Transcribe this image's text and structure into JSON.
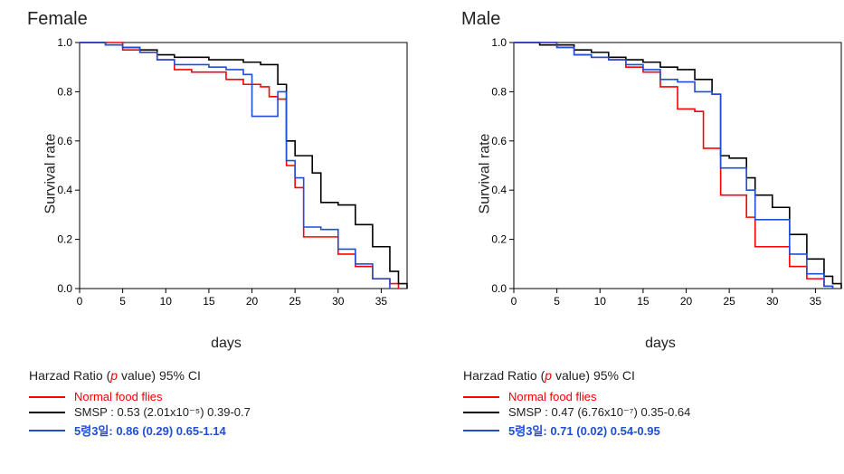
{
  "background_color": "#ffffff",
  "plot": {
    "xlim": [
      0,
      38
    ],
    "ylim": [
      0,
      1.0
    ],
    "xticks": [
      0,
      5,
      10,
      15,
      20,
      25,
      30,
      35
    ],
    "yticks": [
      0.0,
      0.2,
      0.4,
      0.6,
      0.8,
      1.0
    ],
    "xlabel": "days",
    "ylabel": "Survival rate",
    "axis_color": "#000000",
    "tick_fontsize": 12,
    "label_fontsize": 16,
    "line_width": 1.6,
    "box": true
  },
  "series_colors": {
    "normal": "#ff0000",
    "smsp": "#000000",
    "five": "#1f4fd6"
  },
  "female": {
    "title": "Female",
    "series": {
      "normal": [
        [
          0,
          1.0
        ],
        [
          3,
          1.0
        ],
        [
          5,
          0.97
        ],
        [
          7,
          0.96
        ],
        [
          9,
          0.93
        ],
        [
          11,
          0.89
        ],
        [
          13,
          0.88
        ],
        [
          15,
          0.88
        ],
        [
          17,
          0.85
        ],
        [
          19,
          0.83
        ],
        [
          21,
          0.82
        ],
        [
          22,
          0.78
        ],
        [
          23,
          0.77
        ],
        [
          24,
          0.5
        ],
        [
          25,
          0.41
        ],
        [
          26,
          0.21
        ],
        [
          28,
          0.21
        ],
        [
          30,
          0.14
        ],
        [
          32,
          0.09
        ],
        [
          34,
          0.04
        ],
        [
          36,
          0.02
        ],
        [
          37,
          0.0
        ]
      ],
      "smsp": [
        [
          0,
          1.0
        ],
        [
          3,
          0.99
        ],
        [
          5,
          0.98
        ],
        [
          7,
          0.97
        ],
        [
          9,
          0.95
        ],
        [
          11,
          0.94
        ],
        [
          13,
          0.94
        ],
        [
          15,
          0.93
        ],
        [
          17,
          0.93
        ],
        [
          19,
          0.92
        ],
        [
          21,
          0.91
        ],
        [
          23,
          0.83
        ],
        [
          24,
          0.6
        ],
        [
          25,
          0.54
        ],
        [
          27,
          0.47
        ],
        [
          28,
          0.35
        ],
        [
          30,
          0.34
        ],
        [
          32,
          0.26
        ],
        [
          34,
          0.17
        ],
        [
          36,
          0.07
        ],
        [
          37,
          0.02
        ],
        [
          38,
          0.0
        ]
      ],
      "five": [
        [
          0,
          1.0
        ],
        [
          3,
          0.99
        ],
        [
          5,
          0.98
        ],
        [
          7,
          0.96
        ],
        [
          9,
          0.93
        ],
        [
          11,
          0.91
        ],
        [
          13,
          0.91
        ],
        [
          15,
          0.9
        ],
        [
          17,
          0.89
        ],
        [
          19,
          0.87
        ],
        [
          20,
          0.7
        ],
        [
          21,
          0.7
        ],
        [
          23,
          0.8
        ],
        [
          24,
          0.52
        ],
        [
          25,
          0.45
        ],
        [
          26,
          0.25
        ],
        [
          28,
          0.24
        ],
        [
          30,
          0.16
        ],
        [
          32,
          0.1
        ],
        [
          34,
          0.04
        ],
        [
          36,
          0.0
        ]
      ]
    },
    "stats_title": "Harzad Ratio (p value) 95% CI",
    "legend": {
      "normal": "Normal food flies",
      "smsp": "SMSP : 0.53 (2.01x10⁻⁵) 0.39-0.7",
      "five": "5령3일: 0.86 (0.29) 0.65-1.14"
    }
  },
  "male": {
    "title": "Male",
    "series": {
      "normal": [
        [
          0,
          1.0
        ],
        [
          3,
          1.0
        ],
        [
          5,
          0.98
        ],
        [
          7,
          0.95
        ],
        [
          9,
          0.94
        ],
        [
          11,
          0.93
        ],
        [
          13,
          0.9
        ],
        [
          15,
          0.88
        ],
        [
          17,
          0.82
        ],
        [
          19,
          0.73
        ],
        [
          21,
          0.72
        ],
        [
          22,
          0.57
        ],
        [
          23,
          0.57
        ],
        [
          24,
          0.38
        ],
        [
          25,
          0.38
        ],
        [
          27,
          0.29
        ],
        [
          28,
          0.17
        ],
        [
          30,
          0.17
        ],
        [
          32,
          0.09
        ],
        [
          34,
          0.04
        ],
        [
          36,
          0.01
        ],
        [
          37,
          0.0
        ]
      ],
      "smsp": [
        [
          0,
          1.0
        ],
        [
          3,
          0.99
        ],
        [
          5,
          0.99
        ],
        [
          7,
          0.97
        ],
        [
          9,
          0.96
        ],
        [
          11,
          0.94
        ],
        [
          13,
          0.93
        ],
        [
          15,
          0.92
        ],
        [
          17,
          0.9
        ],
        [
          19,
          0.89
        ],
        [
          21,
          0.85
        ],
        [
          23,
          0.79
        ],
        [
          24,
          0.54
        ],
        [
          25,
          0.53
        ],
        [
          27,
          0.45
        ],
        [
          28,
          0.38
        ],
        [
          30,
          0.33
        ],
        [
          32,
          0.22
        ],
        [
          34,
          0.12
        ],
        [
          36,
          0.05
        ],
        [
          37,
          0.02
        ],
        [
          38,
          0.0
        ]
      ],
      "five": [
        [
          0,
          1.0
        ],
        [
          3,
          1.0
        ],
        [
          5,
          0.98
        ],
        [
          7,
          0.95
        ],
        [
          9,
          0.94
        ],
        [
          11,
          0.93
        ],
        [
          13,
          0.91
        ],
        [
          15,
          0.89
        ],
        [
          17,
          0.85
        ],
        [
          19,
          0.84
        ],
        [
          21,
          0.8
        ],
        [
          23,
          0.79
        ],
        [
          24,
          0.49
        ],
        [
          25,
          0.49
        ],
        [
          27,
          0.4
        ],
        [
          28,
          0.28
        ],
        [
          30,
          0.28
        ],
        [
          32,
          0.14
        ],
        [
          34,
          0.06
        ],
        [
          36,
          0.01
        ],
        [
          37,
          0.0
        ]
      ]
    },
    "stats_title": "Harzad Ratio (p value) 95% CI",
    "legend": {
      "normal": "Normal food flies",
      "smsp": "SMSP : 0.47 (6.76x10⁻⁷) 0.35-0.64",
      "five": "5령3일: 0.71 (0.02) 0.54-0.95"
    }
  },
  "legend_text_colors": {
    "normal": "#ff0000",
    "smsp": "#222222",
    "five": "#1f4fd6"
  }
}
